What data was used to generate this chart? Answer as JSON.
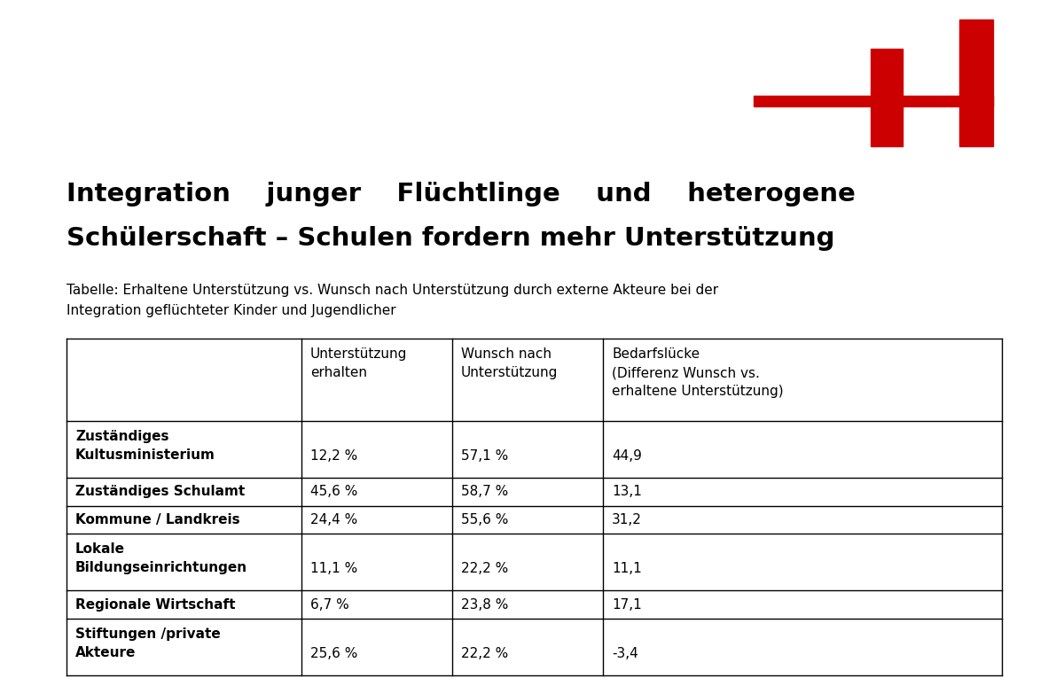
{
  "title_line1": "Integration    junger    Flüchtlinge    und    heterogene",
  "title_line2": "Schülerschaft – Schulen fordern mehr Unterstützung",
  "subtitle_line1": "Tabelle: Erhaltene Unterstützung vs. Wunsch nach Unterstützung durch externe Akteure bei der",
  "subtitle_line2": "Integration geflüchteter Kinder und Jugendlicher",
  "col_headers": [
    "",
    "Unterstützung\nerhalten",
    "Wunsch nach\nUnterstützung",
    "Bedarfslücke\n(Differenz Wunsch vs.\nerhaltene Unterstützung)"
  ],
  "rows": [
    {
      "label_line1": "Zuständiges",
      "label_line2": "Kultusministerium",
      "col1": "12,2 %",
      "col2": "57,1 %",
      "col3": "44,9",
      "tall": true
    },
    {
      "label_line1": "Zuständiges Schulamt",
      "label_line2": "",
      "col1": "45,6 %",
      "col2": "58,7 %",
      "col3": "13,1",
      "tall": false
    },
    {
      "label_line1": "Kommune / Landkreis",
      "label_line2": "",
      "col1": "24,4 %",
      "col2": "55,6 %",
      "col3": "31,2",
      "tall": false
    },
    {
      "label_line1": "Lokale",
      "label_line2": "Bildungseinrichtungen",
      "col1": "11,1 %",
      "col2": "22,2 %",
      "col3": "11,1",
      "tall": true
    },
    {
      "label_line1": "Regionale Wirtschaft",
      "label_line2": "",
      "col1": "6,7 %",
      "col2": "23,8 %",
      "col3": "17,1",
      "tall": false
    },
    {
      "label_line1": "Stiftungen /private",
      "label_line2": "Akteure",
      "col1": "25,6 %",
      "col2": "22,2 %",
      "col3": "-3,4",
      "tall": true
    }
  ],
  "background_color": "#ffffff",
  "text_color": "#000000",
  "logo_color": "#cc0000"
}
